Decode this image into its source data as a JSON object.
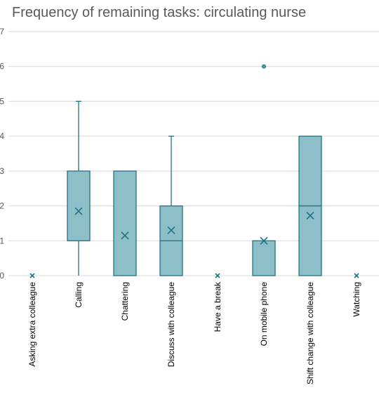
{
  "chart_data": {
    "type": "box",
    "title": "Frequency of remaining tasks: circulating nurse",
    "xlabel": "",
    "ylabel": "",
    "ylim": [
      0,
      7
    ],
    "yticks": [
      0,
      1,
      2,
      3,
      4,
      5,
      6,
      7
    ],
    "grid": true,
    "legend": "none",
    "categories": [
      "Asking extra colleague",
      "Calling",
      "Chattering",
      "Discuss with colleague",
      "Have a break",
      "On mobile phone",
      "Shift change with colleague",
      "Watching"
    ],
    "boxes": [
      {
        "category": "Asking extra colleague",
        "min": 0,
        "q1": 0,
        "median": 0,
        "q3": 0,
        "max": 0,
        "mean": 0,
        "outliers": []
      },
      {
        "category": "Calling",
        "min": 0,
        "q1": 1,
        "median": 1,
        "q3": 3,
        "max": 5,
        "mean": 1.85,
        "outliers": []
      },
      {
        "category": "Chattering",
        "min": 0,
        "q1": 0,
        "median": 3,
        "q3": 3,
        "max": 3,
        "mean": 1.15,
        "outliers": []
      },
      {
        "category": "Discuss with colleague",
        "min": 0,
        "q1": 0,
        "median": 1,
        "q3": 2,
        "max": 4,
        "mean": 1.3,
        "outliers": []
      },
      {
        "category": "Have a break",
        "min": 0,
        "q1": 0,
        "median": 0,
        "q3": 0,
        "max": 0,
        "mean": 0,
        "outliers": []
      },
      {
        "category": "On mobile phone",
        "min": 0,
        "q1": 0,
        "median": 0,
        "q3": 1,
        "max": 1,
        "mean": 1,
        "outliers": [
          6
        ]
      },
      {
        "category": "Shift change with colleague",
        "min": 0,
        "q1": 0,
        "median": 2,
        "q3": 4,
        "max": 4,
        "mean": 1.72,
        "outliers": []
      },
      {
        "category": "Watching",
        "min": 0,
        "q1": 0,
        "median": 0,
        "q3": 0,
        "max": 0,
        "mean": 0,
        "outliers": []
      }
    ],
    "colors": {
      "box_fill": "#8dbfc9",
      "box_stroke": "#1f7383",
      "gridline": "#d9d9d9",
      "text": "#595959"
    }
  }
}
